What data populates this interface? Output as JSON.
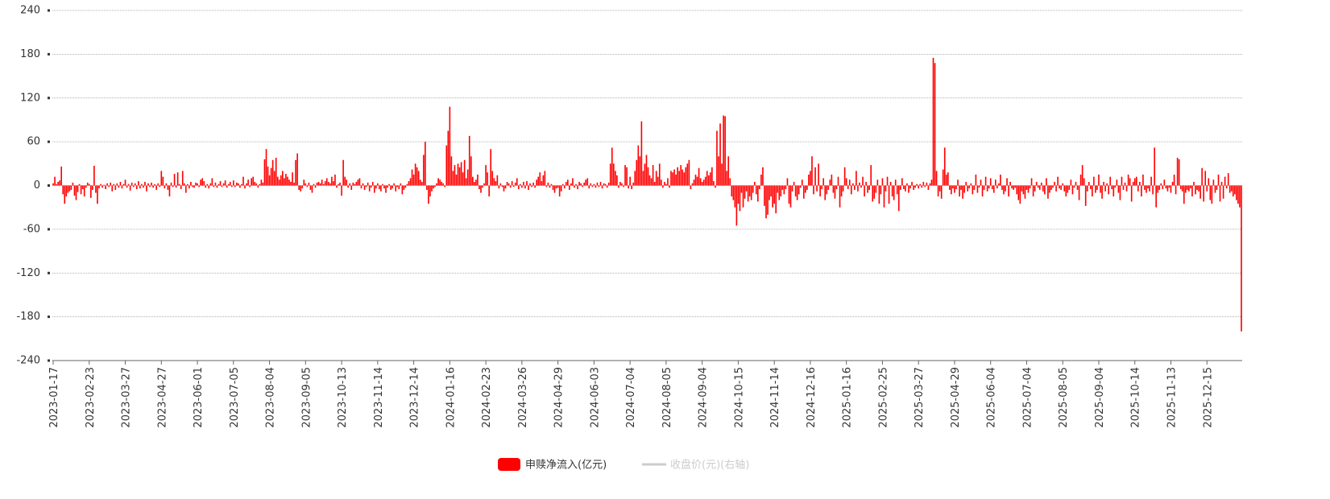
{
  "chart_data": {
    "type": "bar",
    "ylim": [
      -240,
      240
    ],
    "yticks": [
      -240,
      -180,
      -120,
      -60,
      0,
      60,
      120,
      180,
      240
    ],
    "grid": true,
    "categories": [
      "2023-01-17",
      null,
      null,
      null,
      null,
      null,
      null,
      null,
      null,
      null,
      null,
      null,
      null,
      null,
      null,
      null,
      null,
      null,
      null,
      null,
      null,
      null,
      "2023-02-23",
      null,
      null,
      null,
      null,
      null,
      null,
      null,
      null,
      null,
      null,
      null,
      null,
      null,
      null,
      null,
      null,
      null,
      null,
      null,
      null,
      null,
      "2023-03-27",
      null,
      null,
      null,
      null,
      null,
      null,
      null,
      null,
      null,
      null,
      null,
      null,
      null,
      null,
      null,
      null,
      null,
      null,
      null,
      null,
      null,
      "2023-04-27",
      null,
      null,
      null,
      null,
      null,
      null,
      null,
      null,
      null,
      null,
      null,
      null,
      null,
      null,
      null,
      null,
      null,
      null,
      null,
      null,
      null,
      "2023-06-01",
      null,
      null,
      null,
      null,
      null,
      null,
      null,
      null,
      null,
      null,
      null,
      null,
      null,
      null,
      null,
      null,
      null,
      null,
      null,
      null,
      null,
      "2023-07-05",
      null,
      null,
      null,
      null,
      null,
      null,
      null,
      null,
      null,
      null,
      null,
      null,
      null,
      null,
      null,
      null,
      null,
      null,
      null,
      null,
      null,
      "2023-08-04",
      null,
      null,
      null,
      null,
      null,
      null,
      null,
      null,
      null,
      null,
      null,
      null,
      null,
      null,
      null,
      null,
      null,
      null,
      null,
      null,
      null,
      "2023-09-05",
      null,
      null,
      null,
      null,
      null,
      null,
      null,
      null,
      null,
      null,
      null,
      null,
      null,
      null,
      null,
      null,
      null,
      null,
      null,
      null,
      null,
      "2023-10-13",
      null,
      null,
      null,
      null,
      null,
      null,
      null,
      null,
      null,
      null,
      null,
      null,
      null,
      null,
      null,
      null,
      null,
      null,
      null,
      null,
      null,
      "2023-11-14",
      null,
      null,
      null,
      null,
      null,
      null,
      null,
      null,
      null,
      null,
      null,
      null,
      null,
      null,
      null,
      null,
      null,
      null,
      null,
      null,
      null,
      "2023-12-14",
      null,
      null,
      null,
      null,
      null,
      null,
      null,
      null,
      null,
      null,
      null,
      null,
      null,
      null,
      null,
      null,
      null,
      null,
      null,
      null,
      null,
      "2024-01-16",
      null,
      null,
      null,
      null,
      null,
      null,
      null,
      null,
      null,
      null,
      null,
      null,
      null,
      null,
      null,
      null,
      null,
      null,
      null,
      null,
      null,
      "2024-02-23",
      null,
      null,
      null,
      null,
      null,
      null,
      null,
      null,
      null,
      null,
      null,
      null,
      null,
      null,
      null,
      null,
      null,
      null,
      null,
      null,
      null,
      "2024-03-26",
      null,
      null,
      null,
      null,
      null,
      null,
      null,
      null,
      null,
      null,
      null,
      null,
      null,
      null,
      null,
      null,
      null,
      null,
      null,
      null,
      null,
      "2024-04-29",
      null,
      null,
      null,
      null,
      null,
      null,
      null,
      null,
      null,
      null,
      null,
      null,
      null,
      null,
      null,
      null,
      null,
      null,
      null,
      null,
      null,
      "2024-06-03",
      null,
      null,
      null,
      null,
      null,
      null,
      null,
      null,
      null,
      null,
      null,
      null,
      null,
      null,
      null,
      null,
      null,
      null,
      null,
      null,
      null,
      "2024-07-04",
      null,
      null,
      null,
      null,
      null,
      null,
      null,
      null,
      null,
      null,
      null,
      null,
      null,
      null,
      null,
      null,
      null,
      null,
      null,
      null,
      null,
      "2024-08-05",
      null,
      null,
      null,
      null,
      null,
      null,
      null,
      null,
      null,
      null,
      null,
      null,
      null,
      null,
      null,
      null,
      null,
      null,
      null,
      null,
      null,
      "2024-09-04",
      null,
      null,
      null,
      null,
      null,
      null,
      null,
      null,
      null,
      null,
      null,
      null,
      null,
      null,
      null,
      null,
      null,
      null,
      null,
      null,
      null,
      "2024-10-15",
      null,
      null,
      null,
      null,
      null,
      null,
      null,
      null,
      null,
      null,
      null,
      null,
      null,
      null,
      null,
      null,
      null,
      null,
      null,
      null,
      null,
      "2024-11-14",
      null,
      null,
      null,
      null,
      null,
      null,
      null,
      null,
      null,
      null,
      null,
      null,
      null,
      null,
      null,
      null,
      null,
      null,
      null,
      null,
      null,
      "2024-12-16",
      null,
      null,
      null,
      null,
      null,
      null,
      null,
      null,
      null,
      null,
      null,
      null,
      null,
      null,
      null,
      null,
      null,
      null,
      null,
      null,
      null,
      "2025-01-16",
      null,
      null,
      null,
      null,
      null,
      null,
      null,
      null,
      null,
      null,
      null,
      null,
      null,
      null,
      null,
      null,
      null,
      null,
      null,
      null,
      null,
      "2025-02-25",
      null,
      null,
      null,
      null,
      null,
      null,
      null,
      null,
      null,
      null,
      null,
      null,
      null,
      null,
      null,
      null,
      null,
      null,
      null,
      null,
      null,
      "2025-03-27",
      null,
      null,
      null,
      null,
      null,
      null,
      null,
      null,
      null,
      null,
      null,
      null,
      null,
      null,
      null,
      null,
      null,
      null,
      null,
      null,
      null,
      "2025-04-29",
      null,
      null,
      null,
      null,
      null,
      null,
      null,
      null,
      null,
      null,
      null,
      null,
      null,
      null,
      null,
      null,
      null,
      null,
      null,
      null,
      null,
      "2025-06-04",
      null,
      null,
      null,
      null,
      null,
      null,
      null,
      null,
      null,
      null,
      null,
      null,
      null,
      null,
      null,
      null,
      null,
      null,
      null,
      null,
      null,
      "2025-07-04",
      null,
      null,
      null,
      null,
      null,
      null,
      null,
      null,
      null,
      null,
      null,
      null,
      null,
      null,
      null,
      null,
      null,
      null,
      null,
      null,
      null,
      "2025-08-05",
      null,
      null,
      null,
      null,
      null,
      null,
      null,
      null,
      null,
      null,
      null,
      null,
      null,
      null,
      null,
      null,
      null,
      null,
      null,
      null,
      null,
      "2025-09-04",
      null,
      null,
      null,
      null,
      null,
      null,
      null,
      null,
      null,
      null,
      null,
      null,
      null,
      null,
      null,
      null,
      null,
      null,
      null,
      null,
      null,
      "2025-10-14",
      null,
      null,
      null,
      null,
      null,
      null,
      null,
      null,
      null,
      null,
      null,
      null,
      null,
      null,
      null,
      null,
      null,
      null,
      null,
      null,
      null,
      "2025-11-13",
      null,
      null,
      null,
      null,
      null,
      null,
      null,
      null,
      null,
      null,
      null,
      null,
      null,
      null,
      null,
      null,
      null,
      null,
      null,
      null,
      null,
      "2025-12-15",
      null,
      null,
      null,
      null,
      null,
      null,
      null,
      null,
      null,
      null,
      null,
      null,
      null,
      null,
      null,
      null,
      null,
      null,
      null,
      null,
      null
    ],
    "series": [
      {
        "name": "申赎净流入(亿元)",
        "color": "#ff0000",
        "values": [
          3,
          12,
          2,
          5,
          7,
          26,
          -12,
          -25,
          -15,
          -10,
          -8,
          -6,
          4,
          -14,
          -20,
          -9,
          2,
          -12,
          -5,
          -15,
          -3,
          4,
          2,
          -17,
          -6,
          27,
          -10,
          -25,
          -4,
          2,
          -3,
          1,
          -5,
          3,
          -2,
          4,
          -8,
          2,
          -6,
          3,
          -3,
          5,
          -4,
          2,
          8,
          -3,
          2,
          -7,
          4,
          -2,
          3,
          -5,
          6,
          -4,
          2,
          -3,
          5,
          -8,
          3,
          -2,
          4,
          -3,
          2,
          -6,
          3,
          -2,
          20,
          12,
          -4,
          3,
          -6,
          -15,
          4,
          -2,
          16,
          -3,
          18,
          2,
          -5,
          20,
          3,
          -10,
          2,
          -4,
          5,
          -2,
          -3,
          4,
          3,
          -2,
          8,
          10,
          6,
          -3,
          2,
          -4,
          3,
          10,
          -2,
          4,
          -3,
          2,
          6,
          -2,
          3,
          7,
          -3,
          2,
          5,
          -2,
          7,
          -2,
          4,
          3,
          -3,
          2,
          12,
          -4,
          3,
          8,
          -2,
          10,
          12,
          5,
          3,
          -3,
          2,
          8,
          4,
          36,
          50,
          26,
          14,
          24,
          35,
          20,
          38,
          12,
          8,
          14,
          20,
          10,
          16,
          12,
          8,
          5,
          18,
          4,
          35,
          44,
          -6,
          -8,
          -4,
          8,
          3,
          -2,
          4,
          -6,
          -10,
          2,
          -3,
          4,
          5,
          3,
          8,
          2,
          6,
          10,
          5,
          3,
          12,
          6,
          15,
          -3,
          2,
          4,
          -14,
          35,
          12,
          8,
          -3,
          3,
          -6,
          4,
          2,
          5,
          8,
          10,
          -4,
          3,
          -6,
          -2,
          4,
          -8,
          -3,
          5,
          -10,
          -4,
          3,
          -5,
          -8,
          2,
          -4,
          -10,
          -3,
          2,
          -6,
          -4,
          3,
          -8,
          -2,
          -5,
          3,
          -12,
          -6,
          -3,
          2,
          6,
          10,
          22,
          15,
          30,
          25,
          20,
          8,
          5,
          42,
          60,
          -6,
          -25,
          -15,
          -8,
          -4,
          -2,
          3,
          10,
          8,
          5,
          3,
          -2,
          55,
          75,
          108,
          40,
          20,
          28,
          15,
          30,
          25,
          32,
          18,
          35,
          10,
          22,
          68,
          40,
          12,
          5,
          8,
          15,
          -5,
          -10,
          -3,
          3,
          28,
          18,
          -15,
          50,
          20,
          10,
          6,
          14,
          -4,
          3,
          -2,
          -8,
          -4,
          5,
          3,
          -3,
          6,
          -2,
          4,
          10,
          -5,
          2,
          -3,
          5,
          -4,
          6,
          -6,
          3,
          -2,
          4,
          -3,
          8,
          12,
          18,
          6,
          14,
          20,
          -2,
          4,
          -3,
          2,
          -6,
          -10,
          -4,
          -3,
          -15,
          -8,
          2,
          -4,
          5,
          8,
          -6,
          3,
          10,
          -3,
          2,
          -5,
          5,
          3,
          -2,
          4,
          8,
          10,
          -4,
          3,
          -2,
          2,
          -3,
          4,
          -2,
          5,
          -4,
          3,
          2,
          -3,
          4,
          30,
          52,
          30,
          20,
          14,
          -3,
          5,
          3,
          -2,
          28,
          25,
          -4,
          12,
          -5,
          4,
          20,
          35,
          55,
          40,
          88,
          20,
          30,
          42,
          25,
          14,
          10,
          28,
          5,
          20,
          12,
          30,
          8,
          -3,
          5,
          2,
          10,
          -3,
          20,
          18,
          22,
          15,
          25,
          20,
          28,
          22,
          18,
          25,
          30,
          35,
          -5,
          3,
          8,
          15,
          12,
          24,
          10,
          5,
          8,
          12,
          20,
          14,
          18,
          25,
          6,
          -3,
          75,
          40,
          85,
          30,
          96,
          95,
          20,
          40,
          10,
          -15,
          -20,
          -30,
          -55,
          -25,
          -35,
          -10,
          -30,
          -18,
          -8,
          -22,
          -15,
          -20,
          -10,
          5,
          -12,
          -22,
          -5,
          15,
          25,
          -28,
          -45,
          -40,
          -20,
          -15,
          -30,
          -25,
          -38,
          -10,
          -20,
          -15,
          -6,
          -12,
          -5,
          10,
          -25,
          -30,
          -8,
          5,
          -15,
          -20,
          -12,
          -3,
          8,
          -18,
          -10,
          -6,
          15,
          20,
          40,
          -12,
          25,
          -8,
          30,
          -15,
          -5,
          10,
          -20,
          -12,
          -6,
          8,
          15,
          -10,
          -18,
          -5,
          12,
          -30,
          -15,
          -8,
          25,
          10,
          -5,
          8,
          -12,
          3,
          -6,
          20,
          -8,
          4,
          -3,
          12,
          -15,
          5,
          -10,
          -6,
          28,
          -22,
          -18,
          -10,
          8,
          -25,
          -12,
          10,
          -30,
          -8,
          12,
          -25,
          5,
          -15,
          -20,
          8,
          -12,
          -35,
          -6,
          10,
          -5,
          -8,
          3,
          -10,
          -4,
          5,
          -6,
          -3,
          2,
          -4,
          2,
          -3,
          5,
          -2,
          4,
          -6,
          3,
          8,
          175,
          168,
          20,
          -15,
          -8,
          -18,
          22,
          52,
          15,
          18,
          -6,
          -12,
          -4,
          -10,
          -5,
          8,
          -15,
          -6,
          -18,
          -10,
          5,
          -8,
          -4,
          3,
          -12,
          -6,
          15,
          -10,
          -3,
          8,
          -15,
          -6,
          12,
          -8,
          -4,
          10,
          -5,
          -10,
          8,
          -4,
          3,
          15,
          -6,
          -12,
          -8,
          10,
          -15,
          5,
          -4,
          -6,
          -3,
          -12,
          -20,
          -25,
          -8,
          -12,
          -18,
          -6,
          -10,
          -4,
          10,
          -15,
          -8,
          5,
          -3,
          -6,
          4,
          -8,
          -12,
          10,
          -18,
          -10,
          -6,
          -3,
          5,
          -8,
          12,
          -4,
          -6,
          3,
          -8,
          -15,
          -10,
          -6,
          8,
          -12,
          -3,
          5,
          -6,
          -20,
          15,
          28,
          10,
          -28,
          -8,
          5,
          -5,
          -15,
          12,
          -10,
          -6,
          15,
          -10,
          -18,
          5,
          -8,
          3,
          -12,
          12,
          -5,
          -15,
          -3,
          8,
          -10,
          -20,
          12,
          -6,
          4,
          -8,
          15,
          10,
          -22,
          5,
          10,
          12,
          -8,
          5,
          -15,
          15,
          -6,
          -10,
          -4,
          -8,
          12,
          -12,
          52,
          -30,
          -10,
          -6,
          3,
          -5,
          8,
          -4,
          -8,
          -3,
          -10,
          5,
          15,
          -12,
          38,
          36,
          -5,
          -8,
          -25,
          -10,
          -6,
          -8,
          -4,
          -15,
          5,
          -12,
          -6,
          -8,
          -18,
          24,
          -22,
          20,
          -8,
          10,
          -20,
          -25,
          8,
          -10,
          -6,
          15,
          -22,
          5,
          -18,
          12,
          -4,
          17,
          -10,
          -8,
          -15,
          -12,
          -20,
          -25,
          -30,
          -200
        ]
      }
    ],
    "hidden_series": [
      {
        "name": "收盘价(元)(右轴)",
        "color": "#cccccc"
      }
    ]
  }
}
